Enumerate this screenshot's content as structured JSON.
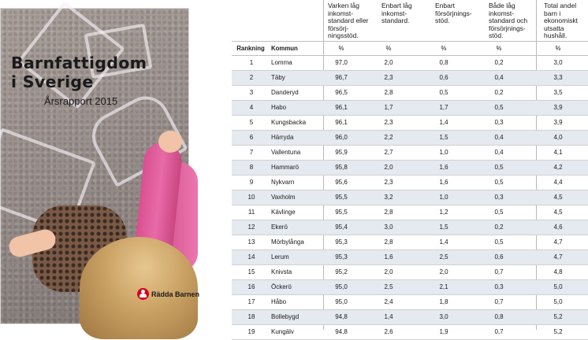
{
  "cover": {
    "title_line1": "Barnfattigdom",
    "title_line2": "i Sverige",
    "subtitle": "Årsrapport 2015",
    "logo_text": "Rädda Barnen",
    "accent_color": "#d6001c"
  },
  "table": {
    "headers": [
      "",
      "",
      "Varken låg inkomst-standard eller försörj-ningsstöd.",
      "Enbart låg inkomst-standard.",
      "Enbart försörjnings-stöd.",
      "Både låg inkomst-standard och försörjnings-stöd.",
      "Total andel barn i ekonomiskt utsatta hushåll."
    ],
    "col_labels": [
      "Rankning",
      "Kommun"
    ],
    "units": [
      "%",
      "%",
      "%",
      "%",
      "%"
    ],
    "row_alt_color": "#e5e9f0",
    "rows": [
      [
        "1",
        "Lomma",
        "97,0",
        "2,0",
        "0,8",
        "0,2",
        "3,0"
      ],
      [
        "2",
        "Täby",
        "96,7",
        "2,3",
        "0,6",
        "0,4",
        "3,3"
      ],
      [
        "3",
        "Danderyd",
        "96,5",
        "2,8",
        "0,5",
        "0,2",
        "3,5"
      ],
      [
        "4",
        "Habo",
        "96,1",
        "1,7",
        "1,7",
        "0,5",
        "3,9"
      ],
      [
        "5",
        "Kungsbacka",
        "96,1",
        "2,3",
        "1,4",
        "0,3",
        "3,9"
      ],
      [
        "6",
        "Härryda",
        "96,0",
        "2,2",
        "1,5",
        "0,4",
        "4,0"
      ],
      [
        "7",
        "Vallentuna",
        "95,9",
        "2,7",
        "1,0",
        "0,4",
        "4,1"
      ],
      [
        "8",
        "Hammarö",
        "95,8",
        "2,0",
        "1,6",
        "0,5",
        "4,2"
      ],
      [
        "9",
        "Nykvarn",
        "95,6",
        "2,3",
        "1,6",
        "0,5",
        "4,4"
      ],
      [
        "10",
        "Vaxholm",
        "95,5",
        "3,2",
        "1,0",
        "0,3",
        "4,5"
      ],
      [
        "11",
        "Kävlinge",
        "95,5",
        "2,8",
        "1,2",
        "0,5",
        "4,5"
      ],
      [
        "12",
        "Ekerö",
        "95,4",
        "3,0",
        "1,5",
        "0,2",
        "4,6"
      ],
      [
        "13",
        "Mörbylånga",
        "95,3",
        "2,8",
        "1,4",
        "0,5",
        "4,7"
      ],
      [
        "14",
        "Lerum",
        "95,3",
        "1,6",
        "2,5",
        "0,6",
        "4,7"
      ],
      [
        "15",
        "Knivsta",
        "95,2",
        "2,0",
        "2,0",
        "0,7",
        "4,8"
      ],
      [
        "16",
        "Öckerö",
        "95,0",
        "2,5",
        "2,1",
        "0,3",
        "5,0"
      ],
      [
        "17",
        "Håbo",
        "95,0",
        "2,4",
        "1,8",
        "0,7",
        "5,0"
      ],
      [
        "18",
        "Bollebygd",
        "94,8",
        "1,4",
        "3,0",
        "0,8",
        "5,2"
      ],
      [
        "19",
        "Kungälv",
        "94,8",
        "2,6",
        "1,9",
        "0,7",
        "5,2"
      ]
    ]
  }
}
